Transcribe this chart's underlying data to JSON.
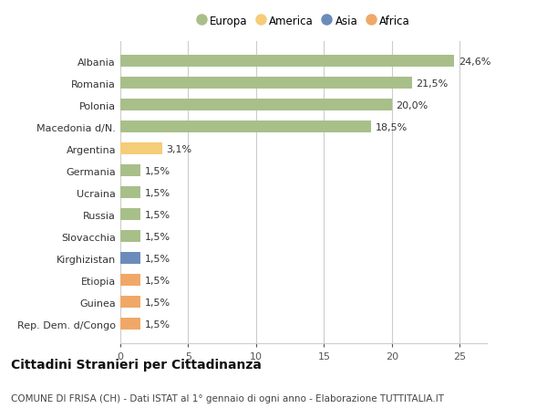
{
  "categories": [
    "Rep. Dem. d/Congo",
    "Guinea",
    "Etiopia",
    "Kirghizistan",
    "Slovacchia",
    "Russia",
    "Ucraina",
    "Germania",
    "Argentina",
    "Macedonia d/N.",
    "Polonia",
    "Romania",
    "Albania"
  ],
  "values": [
    1.5,
    1.5,
    1.5,
    1.5,
    1.5,
    1.5,
    1.5,
    1.5,
    3.1,
    18.5,
    20.0,
    21.5,
    24.6
  ],
  "labels": [
    "1,5%",
    "1,5%",
    "1,5%",
    "1,5%",
    "1,5%",
    "1,5%",
    "1,5%",
    "1,5%",
    "3,1%",
    "18,5%",
    "20,0%",
    "21,5%",
    "24,6%"
  ],
  "colors": [
    "#f0a868",
    "#f0a868",
    "#f0a868",
    "#6b8cba",
    "#a8bf8a",
    "#a8bf8a",
    "#a8bf8a",
    "#a8bf8a",
    "#f5cc78",
    "#a8bf8a",
    "#a8bf8a",
    "#a8bf8a",
    "#a8bf8a"
  ],
  "legend_labels": [
    "Europa",
    "America",
    "Asia",
    "Africa"
  ],
  "legend_colors": [
    "#a8bf8a",
    "#f5cc78",
    "#6b8cba",
    "#f0a868"
  ],
  "xlim": [
    0,
    27
  ],
  "xticks": [
    0,
    5,
    10,
    15,
    20,
    25
  ],
  "title": "Cittadini Stranieri per Cittadinanza",
  "subtitle": "COMUNE DI FRISA (CH) - Dati ISTAT al 1° gennaio di ogni anno - Elaborazione TUTTITALIA.IT",
  "bg_color": "#ffffff",
  "grid_color": "#cccccc",
  "bar_height": 0.55,
  "title_fontsize": 10,
  "subtitle_fontsize": 7.5,
  "label_fontsize": 8,
  "tick_fontsize": 8,
  "legend_fontsize": 8.5
}
